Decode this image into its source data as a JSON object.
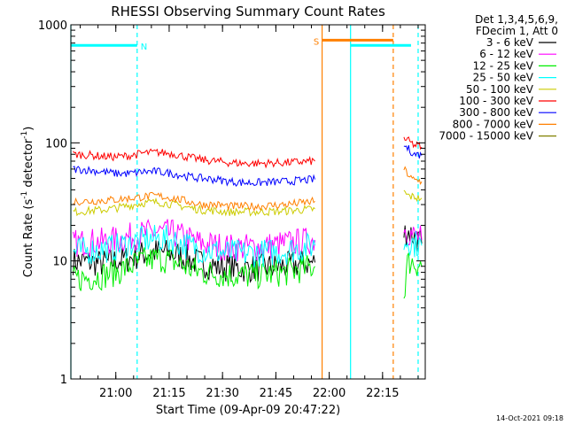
{
  "chart_data": {
    "type": "line",
    "title": "RHESSI Observing Summary Count Rates",
    "xlabel": "Start Time (09-Apr-09 20:47:22)",
    "ylabel_main": "Count Rate (s",
    "ylabel_sup1": "-1",
    "ylabel_mid": " detector",
    "ylabel_sup2": "-1",
    "ylabel_end": ")",
    "yscale": "log",
    "ylim": [
      1,
      1000
    ],
    "xlim": [
      "20:47:22",
      "22:27:00"
    ],
    "x_ticks": [
      "21:00",
      "21:15",
      "21:30",
      "21:45",
      "22:00",
      "22:15"
    ],
    "y_ticks": [
      "1",
      "10",
      "100",
      "1000"
    ],
    "legend_header": [
      "Det 1,3,4,5,6,9,",
      "FDecim 1, Att 0"
    ],
    "footer_date": "14-Oct-2021 09:18",
    "x_times": [
      "20:48",
      "20:52",
      "20:56",
      "21:00",
      "21:04",
      "21:08",
      "21:12",
      "21:16",
      "21:20",
      "21:24",
      "21:28",
      "21:32",
      "21:36",
      "21:40",
      "21:44",
      "21:48",
      "21:52",
      "21:56",
      "22:21",
      "22:22",
      "22:23",
      "22:24",
      "22:25",
      "22:26"
    ],
    "series": [
      {
        "name": "3 - 6 keV",
        "color": "#000000",
        "values": [
          10,
          9.8,
          9.5,
          10,
          10.5,
          11.5,
          12,
          11.5,
          10.5,
          9.5,
          9,
          8.8,
          8.6,
          8.7,
          8.9,
          9.1,
          9.4,
          9.7,
          17,
          18,
          17,
          16,
          15,
          14
        ]
      },
      {
        "name": "6 - 12 keV",
        "color": "#ff00ff",
        "values": [
          14,
          14.5,
          14.5,
          15,
          16,
          17,
          17.5,
          17,
          15.5,
          14,
          13.5,
          13,
          13,
          13.2,
          13.5,
          14,
          14.5,
          15,
          19,
          18,
          17,
          16,
          16,
          15
        ]
      },
      {
        "name": "12 - 25 keV",
        "color": "#00ee00",
        "values": [
          7,
          7.2,
          7.5,
          8,
          9,
          10,
          10.5,
          10,
          8.8,
          8,
          7.8,
          7.6,
          7.5,
          7.6,
          7.8,
          8,
          8.5,
          9,
          5,
          9.5,
          10,
          9.5,
          9.5,
          9
        ]
      },
      {
        "name": "25 - 50 keV",
        "color": "#00ffff",
        "values": [
          12,
          12.2,
          12.5,
          13,
          14,
          15,
          15.5,
          15,
          13.5,
          12.5,
          12,
          11.6,
          11.5,
          11.6,
          11.8,
          12.2,
          12.8,
          13.5,
          14,
          15,
          14.5,
          14,
          14,
          13.5
        ]
      },
      {
        "name": "50 - 100 keV",
        "color": "#cccc00",
        "values": [
          26,
          26.5,
          27,
          28,
          29.5,
          31,
          31.5,
          30,
          28.5,
          27,
          26.5,
          26,
          26,
          26,
          26.2,
          26.5,
          27,
          27.5,
          38,
          36,
          35,
          35,
          34,
          34
        ]
      },
      {
        "name": "100 - 300 keV",
        "color": "#ff0000",
        "values": [
          80,
          79,
          77,
          76,
          78,
          82,
          83,
          81,
          76,
          72,
          70,
          68,
          67,
          67,
          67.5,
          68,
          69,
          70,
          110,
          105,
          100,
          95,
          95,
          92
        ]
      },
      {
        "name": "300 - 800 keV",
        "color": "#0000ff",
        "values": [
          60,
          59,
          57,
          55,
          55,
          57,
          57,
          55,
          52,
          50,
          49,
          47,
          46,
          46,
          46.5,
          47,
          48,
          49,
          95,
          90,
          85,
          80,
          80,
          78
        ]
      },
      {
        "name": "800 - 7000 keV",
        "color": "#ff8000",
        "values": [
          32,
          32,
          32.5,
          33,
          34,
          35,
          35.5,
          34,
          32,
          30,
          30,
          29,
          29,
          29,
          29.5,
          30,
          31,
          32,
          60,
          55,
          50,
          48,
          48,
          47
        ]
      },
      {
        "name": "7000 - 15000 keV",
        "color": "#808000",
        "values": []
      }
    ],
    "bars": [
      {
        "label": "N",
        "color": "#00ffff",
        "start": "20:47:22",
        "end": "21:06",
        "level": 670
      },
      {
        "label": "",
        "color": "#00ffff",
        "start": "22:06",
        "end": "22:23",
        "level": 670
      },
      {
        "label": "S",
        "color": "#ff8000",
        "start": "21:58",
        "end": "22:18",
        "level": 740
      }
    ],
    "vlines": [
      {
        "time": "20:47:22",
        "color": "#00ffff",
        "style": "solid"
      },
      {
        "time": "21:06",
        "color": "#00ffff",
        "style": "dashed"
      },
      {
        "time": "21:58",
        "color": "#ff8000",
        "style": "solid"
      },
      {
        "time": "22:06",
        "color": "#00ffff",
        "style": "solid"
      },
      {
        "time": "22:18",
        "color": "#ff8000",
        "style": "dashed"
      },
      {
        "time": "22:25",
        "color": "#00ffff",
        "style": "dashed"
      }
    ]
  }
}
